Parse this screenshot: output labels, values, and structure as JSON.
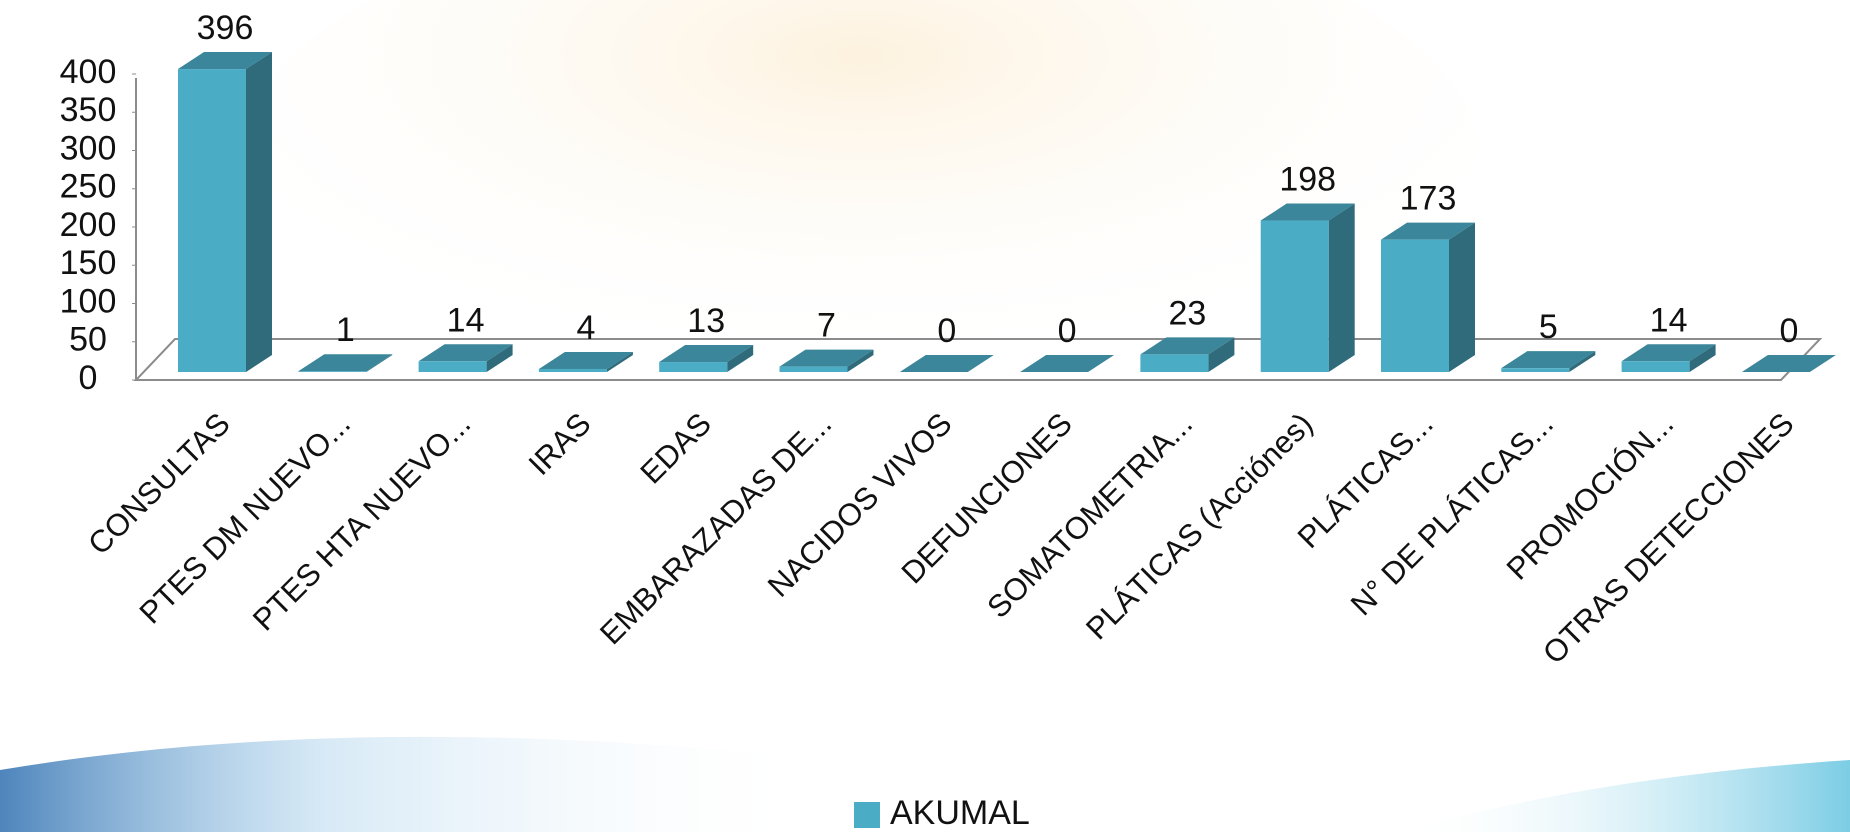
{
  "chart_data": {
    "type": "bar",
    "categories": [
      "CONSULTAS",
      "PTES DM NUEVO...",
      "PTES HTA NUEVO...",
      "IRAS",
      "EDAS",
      "EMBARAZADAS DE...",
      "NACIDOS VIVOS",
      "DEFUNCIONES",
      "SOMATOMETRIA...",
      "PLÁTICAS (Acciónes)",
      "PLÁTICAS...",
      "N° DE PLÁTICAS...",
      "PROMOCIÓN...",
      "OTRAS DETECCIONES"
    ],
    "series": [
      {
        "name": "AKUMAL",
        "color": "#4bacc6",
        "values": [
          396,
          1,
          14,
          4,
          13,
          7,
          0,
          0,
          23,
          198,
          173,
          5,
          14,
          0
        ]
      }
    ],
    "ylim": [
      0,
      400
    ],
    "yticks": [
      0,
      50,
      100,
      150,
      200,
      250,
      300,
      350,
      400
    ],
    "legend": "bottom"
  }
}
